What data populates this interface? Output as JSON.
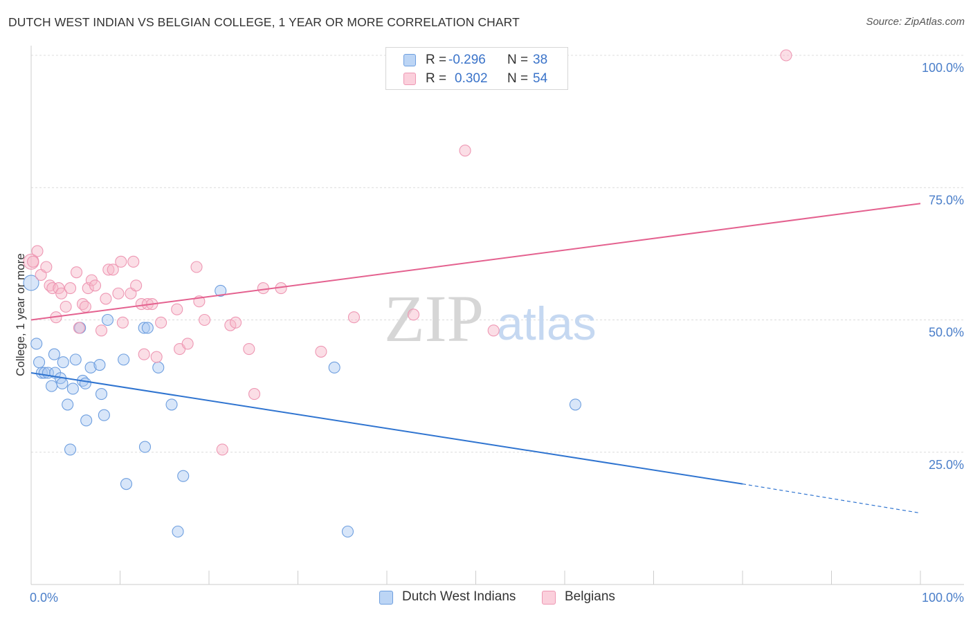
{
  "header": {
    "title": "DUTCH WEST INDIAN VS BELGIAN COLLEGE, 1 YEAR OR MORE CORRELATION CHART",
    "source": "Source: ZipAtlas.com"
  },
  "watermark": {
    "zip": "ZIP",
    "atlas": "atlas"
  },
  "legend": {
    "rows": [
      {
        "r_label": "R =",
        "r_value": "-0.296",
        "n_label": "N =",
        "n_value": "38",
        "color": "#a9c8f2"
      },
      {
        "r_label": "R =",
        "r_value": "0.302",
        "n_label": "N =",
        "n_value": "54",
        "color": "#f7b6c8"
      }
    ]
  },
  "bottom_legend": {
    "items": [
      {
        "label": "Dutch West Indians",
        "color": "#a9c8f2"
      },
      {
        "label": "Belgians",
        "color": "#f7b6c8"
      }
    ]
  },
  "chart_data": {
    "type": "scatter",
    "title": "DUTCH WEST INDIAN VS BELGIAN COLLEGE, 1 YEAR OR MORE CORRELATION CHART",
    "xlabel": "",
    "ylabel": "College, 1 year or more",
    "x_tick_labels": [
      "0.0%",
      "100.0%"
    ],
    "y_tick_labels": [
      "25.0%",
      "50.0%",
      "75.0%",
      "100.0%"
    ],
    "xlim": [
      0,
      100
    ],
    "ylim": [
      0,
      105
    ],
    "grid": "horizontal dashed",
    "legend_position": "top-center",
    "colors": {
      "blue": "#4a86d6",
      "blue_line": "#2f74d0",
      "pink": "#ea8fae",
      "pink_line": "#e4618f"
    },
    "series": [
      {
        "name": "Dutch West Indians",
        "color": "blue",
        "r": -0.296,
        "n": 38,
        "trend": {
          "x_start": 0,
          "y_start": 40,
          "x_solid_end": 80,
          "y_solid_end": 19,
          "x_end": 100,
          "y_end": 13.5
        },
        "points": [
          [
            0,
            57
          ],
          [
            0.6,
            45.5
          ],
          [
            0.9,
            42
          ],
          [
            1.2,
            40
          ],
          [
            1.5,
            40
          ],
          [
            1.9,
            40
          ],
          [
            2.3,
            37.5
          ],
          [
            2.7,
            40
          ],
          [
            2.6,
            43.5
          ],
          [
            3.3,
            39
          ],
          [
            3.5,
            38
          ],
          [
            3.6,
            42
          ],
          [
            4.1,
            34
          ],
          [
            4.4,
            25.5
          ],
          [
            4.7,
            37
          ],
          [
            5.0,
            42.5
          ],
          [
            5.5,
            48.5
          ],
          [
            5.8,
            38.5
          ],
          [
            6.1,
            38
          ],
          [
            6.2,
            31
          ],
          [
            6.7,
            41
          ],
          [
            7.7,
            41.5
          ],
          [
            7.9,
            36
          ],
          [
            8.2,
            32
          ],
          [
            8.6,
            50
          ],
          [
            10.4,
            42.5
          ],
          [
            10.7,
            19
          ],
          [
            12.7,
            48.5
          ],
          [
            12.8,
            26
          ],
          [
            13.1,
            48.5
          ],
          [
            14.3,
            41
          ],
          [
            15.8,
            34
          ],
          [
            16.5,
            10
          ],
          [
            17.1,
            20.5
          ],
          [
            21.3,
            55.5
          ],
          [
            34.1,
            41
          ],
          [
            35.6,
            10
          ],
          [
            61.2,
            34
          ]
        ]
      },
      {
        "name": "Belgians",
        "color": "pink",
        "r": 0.302,
        "n": 54,
        "trend": {
          "x_start": 0,
          "y_start": 50,
          "x_end": 100,
          "y_end": 72
        },
        "points": [
          [
            0,
            61
          ],
          [
            0.7,
            63
          ],
          [
            1.1,
            58.5
          ],
          [
            1.7,
            60
          ],
          [
            2.1,
            56.5
          ],
          [
            2.4,
            56
          ],
          [
            2.8,
            50.5
          ],
          [
            3.1,
            56
          ],
          [
            3.4,
            55
          ],
          [
            3.9,
            52.5
          ],
          [
            4.4,
            56
          ],
          [
            5.1,
            59
          ],
          [
            5.4,
            48.5
          ],
          [
            5.8,
            53
          ],
          [
            6.1,
            52.5
          ],
          [
            6.4,
            56
          ],
          [
            6.8,
            57.5
          ],
          [
            7.2,
            56.5
          ],
          [
            7.9,
            48
          ],
          [
            8.4,
            54
          ],
          [
            8.7,
            59.5
          ],
          [
            9.2,
            59.5
          ],
          [
            9.8,
            55
          ],
          [
            10.1,
            61
          ],
          [
            10.3,
            49.5
          ],
          [
            11.2,
            55
          ],
          [
            11.5,
            61
          ],
          [
            11.8,
            56.5
          ],
          [
            12.4,
            53
          ],
          [
            12.7,
            43.5
          ],
          [
            13.1,
            53
          ],
          [
            13.6,
            53
          ],
          [
            14.1,
            43
          ],
          [
            14.6,
            49.5
          ],
          [
            16.4,
            52
          ],
          [
            16.7,
            44.5
          ],
          [
            17.6,
            45.5
          ],
          [
            18.6,
            60
          ],
          [
            18.9,
            53.5
          ],
          [
            19.5,
            50
          ],
          [
            21.5,
            25.5
          ],
          [
            22.4,
            49
          ],
          [
            23.0,
            49.5
          ],
          [
            24.5,
            44.5
          ],
          [
            25.1,
            36
          ],
          [
            26.1,
            56
          ],
          [
            28.1,
            56
          ],
          [
            32.6,
            44
          ],
          [
            36.3,
            50.5
          ],
          [
            43.0,
            51
          ],
          [
            48.8,
            82
          ],
          [
            52.0,
            48
          ],
          [
            84.9,
            100
          ],
          [
            0.2,
            61
          ]
        ]
      }
    ]
  }
}
